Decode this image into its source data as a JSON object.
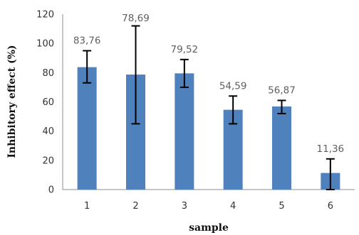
{
  "chart_data": {
    "type": "bar",
    "categories": [
      "1",
      "2",
      "3",
      "4",
      "5",
      "6"
    ],
    "values": [
      83.76,
      78.69,
      79.52,
      54.59,
      56.87,
      11.36
    ],
    "value_labels": [
      "83,76",
      "78,69",
      "79,52",
      "54,59",
      "56,87",
      "11,36"
    ],
    "error_bars": [
      [
        73,
        95
      ],
      [
        45,
        112
      ],
      [
        70,
        89
      ],
      [
        45,
        64
      ],
      [
        52,
        61
      ],
      [
        0,
        21
      ]
    ],
    "title": "",
    "xlabel": "sample",
    "ylabel": "Inhibitory effect (%)",
    "ylim": [
      0,
      120
    ],
    "yticks": [
      "0",
      "20",
      "40",
      "60",
      "80",
      "100",
      "120"
    ],
    "grid": false,
    "legend": "none",
    "bar_color": "#4f81bd",
    "error_bar_color": "#000000"
  }
}
